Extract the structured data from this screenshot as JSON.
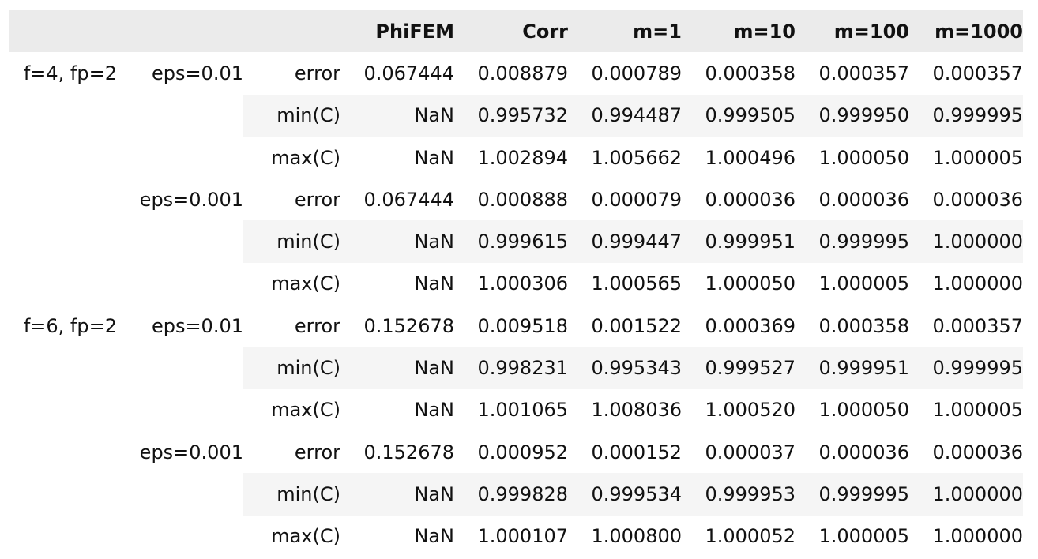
{
  "header": [
    "",
    "",
    "",
    "PhiFEM",
    "Corr",
    "m=1",
    "m=10",
    "m=100",
    "m=1000"
  ],
  "groups": [
    {
      "label": "f=4, fp=2",
      "subgroups": [
        {
          "eps": "eps=0.01",
          "rows": [
            {
              "metric": "error",
              "values": [
                "0.067444",
                "0.008879",
                "0.000789",
                "0.000358",
                "0.000357",
                "0.000357"
              ]
            },
            {
              "metric": "min(C)",
              "values": [
                "NaN",
                "0.995732",
                "0.994487",
                "0.999505",
                "0.999950",
                "0.999995"
              ]
            },
            {
              "metric": "max(C)",
              "values": [
                "NaN",
                "1.002894",
                "1.005662",
                "1.000496",
                "1.000050",
                "1.000005"
              ]
            }
          ]
        },
        {
          "eps": "eps=0.001",
          "rows": [
            {
              "metric": "error",
              "values": [
                "0.067444",
                "0.000888",
                "0.000079",
                "0.000036",
                "0.000036",
                "0.000036"
              ]
            },
            {
              "metric": "min(C)",
              "values": [
                "NaN",
                "0.999615",
                "0.999447",
                "0.999951",
                "0.999995",
                "1.000000"
              ]
            },
            {
              "metric": "max(C)",
              "values": [
                "NaN",
                "1.000306",
                "1.000565",
                "1.000050",
                "1.000005",
                "1.000000"
              ]
            }
          ]
        }
      ]
    },
    {
      "label": "f=6, fp=2",
      "subgroups": [
        {
          "eps": "eps=0.01",
          "rows": [
            {
              "metric": "error",
              "values": [
                "0.152678",
                "0.009518",
                "0.001522",
                "0.000369",
                "0.000358",
                "0.000357"
              ]
            },
            {
              "metric": "min(C)",
              "values": [
                "NaN",
                "0.998231",
                "0.995343",
                "0.999527",
                "0.999951",
                "0.999995"
              ]
            },
            {
              "metric": "max(C)",
              "values": [
                "NaN",
                "1.001065",
                "1.008036",
                "1.000520",
                "1.000050",
                "1.000005"
              ]
            }
          ]
        },
        {
          "eps": "eps=0.001",
          "rows": [
            {
              "metric": "error",
              "values": [
                "0.152678",
                "0.000952",
                "0.000152",
                "0.000037",
                "0.000036",
                "0.000036"
              ]
            },
            {
              "metric": "min(C)",
              "values": [
                "NaN",
                "0.999828",
                "0.999534",
                "0.999953",
                "0.999995",
                "1.000000"
              ]
            },
            {
              "metric": "max(C)",
              "values": [
                "NaN",
                "1.000107",
                "1.000800",
                "1.000052",
                "1.000005",
                "1.000000"
              ]
            }
          ]
        }
      ]
    }
  ]
}
